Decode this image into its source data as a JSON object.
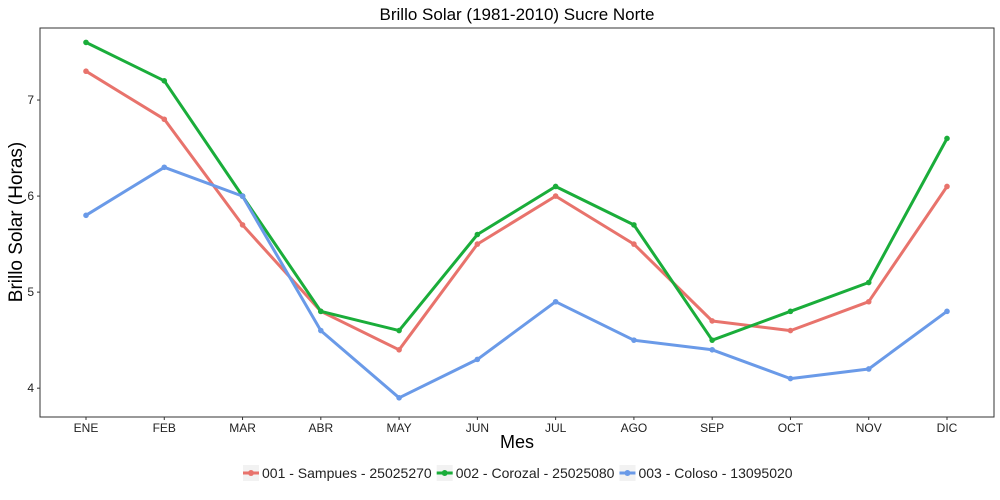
{
  "chart_data": {
    "type": "line",
    "title": "Brillo Solar (1981-2010)  Sucre Norte",
    "xlabel": "Mes",
    "ylabel": "Brillo Solar (Horas)",
    "categories": [
      "ENE",
      "FEB",
      "MAR",
      "ABR",
      "MAY",
      "JUN",
      "JUL",
      "AGO",
      "SEP",
      "OCT",
      "NOV",
      "DIC"
    ],
    "ylim": [
      3.7,
      7.75
    ],
    "yticks": [
      4,
      5,
      6,
      7
    ],
    "grid": false,
    "legend_position": "bottom",
    "series": [
      {
        "name": "001 - Sampues - 25025270",
        "color": "#e8736c",
        "values": [
          7.3,
          6.8,
          5.7,
          4.8,
          4.4,
          5.5,
          6.0,
          5.5,
          4.7,
          4.6,
          4.9,
          6.1
        ]
      },
      {
        "name": "002 - Corozal - 25025080",
        "color": "#1aad3a",
        "values": [
          7.6,
          7.2,
          6.0,
          4.8,
          4.6,
          5.6,
          6.1,
          5.7,
          4.5,
          4.8,
          5.1,
          6.6
        ]
      },
      {
        "name": "003 - Coloso - 13095020",
        "color": "#6a9ae8",
        "values": [
          5.8,
          6.3,
          6.0,
          4.6,
          3.9,
          4.3,
          4.9,
          4.5,
          4.4,
          4.1,
          4.2,
          4.8
        ]
      }
    ]
  }
}
